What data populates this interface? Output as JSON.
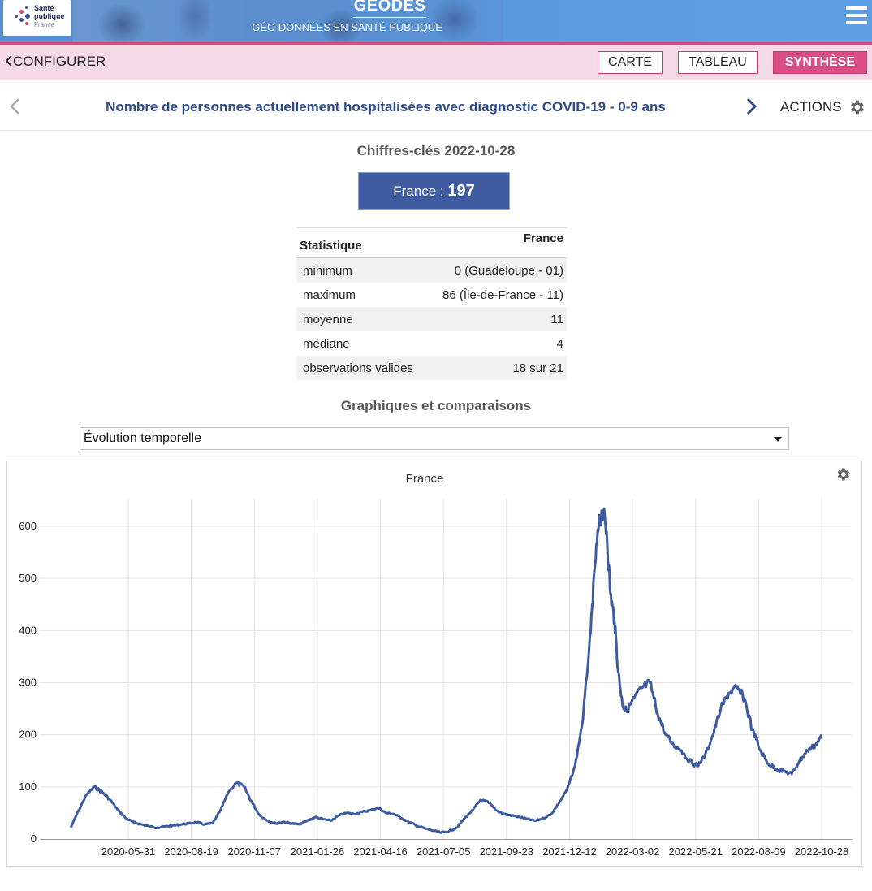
{
  "header": {
    "logo_line1": "Santé",
    "logo_line2": "publique",
    "logo_line3": "France",
    "brand": "GEODES",
    "brand_sub": "GÉO DONNÉES EN SANTÉ PUBLIQUE",
    "menu_icon": "hamburger-menu-icon",
    "border_color": "#d24c7d"
  },
  "nav": {
    "back_label": "CONFIGURER",
    "tabs": [
      {
        "label": "CARTE",
        "active": false
      },
      {
        "label": "TABLEAU",
        "active": false
      },
      {
        "label": "SYNTHÈSE",
        "active": true
      }
    ],
    "active_color": "#d94f84"
  },
  "indicator": {
    "title": "Nombre de personnes actuellement hospitalisées avec diagnostic COVID-19 - 0-9 ans",
    "actions_label": "ACTIONS"
  },
  "key_figures": {
    "title": "Chiffres-clés 2022-10-28",
    "label": "France : ",
    "value": "197",
    "box_color": "#3f5ba1"
  },
  "stats": {
    "headers": [
      "Statistique",
      "France"
    ],
    "rows": [
      {
        "label": "minimum",
        "value": "0 (Guadeloupe - 01)"
      },
      {
        "label": "maximum",
        "value": "86 (Île-de-France - 11)"
      },
      {
        "label": "moyenne",
        "value": "11"
      },
      {
        "label": "médiane",
        "value": "4"
      },
      {
        "label": "observations valides",
        "value": "18 sur 21"
      }
    ]
  },
  "graphs": {
    "title": "Graphiques et comparaisons",
    "selected": "Évolution temporelle"
  },
  "chart_data": {
    "type": "line",
    "title": "France",
    "xlabel": "",
    "ylabel": "",
    "ylim": [
      0,
      640
    ],
    "yticks": [
      0,
      100,
      200,
      300,
      400,
      500,
      600
    ],
    "xticks": [
      "2020-05-31",
      "2020-08-19",
      "2020-11-07",
      "2021-01-26",
      "2021-04-16",
      "2021-07-05",
      "2021-09-23",
      "2021-12-12",
      "2022-03-02",
      "2022-05-21",
      "2022-08-09",
      "2022-10-28"
    ],
    "grid": true,
    "line_color": "#3c5ba0",
    "series": [
      {
        "x": [
          "2020-03-19",
          "2020-03-29",
          "2020-04-08",
          "2020-04-18",
          "2020-04-28",
          "2020-05-08",
          "2020-05-18",
          "2020-05-28",
          "2020-06-07",
          "2020-06-17",
          "2020-06-27",
          "2020-07-07",
          "2020-07-17",
          "2020-07-27",
          "2020-08-06",
          "2020-08-16",
          "2020-08-26",
          "2020-09-05",
          "2020-09-15",
          "2020-09-25",
          "2020-10-05",
          "2020-10-15",
          "2020-10-25",
          "2020-11-04",
          "2020-11-14",
          "2020-11-24",
          "2020-12-04",
          "2020-12-14",
          "2020-12-24",
          "2021-01-03",
          "2021-01-13",
          "2021-01-23",
          "2021-02-02",
          "2021-02-12",
          "2021-02-22",
          "2021-03-04",
          "2021-03-14",
          "2021-03-24",
          "2021-04-03",
          "2021-04-13",
          "2021-04-23",
          "2021-05-03",
          "2021-05-13",
          "2021-05-23",
          "2021-06-02",
          "2021-06-12",
          "2021-06-22",
          "2021-07-02",
          "2021-07-12",
          "2021-07-22",
          "2021-08-01",
          "2021-08-11",
          "2021-08-21",
          "2021-08-31",
          "2021-09-10",
          "2021-09-20",
          "2021-09-30",
          "2021-10-10",
          "2021-10-20",
          "2021-10-30",
          "2021-11-09",
          "2021-11-19",
          "2021-11-29",
          "2021-12-09",
          "2021-12-19",
          "2021-12-29",
          "2022-01-08",
          "2022-01-13",
          "2022-01-18",
          "2022-01-23",
          "2022-01-28",
          "2022-02-02",
          "2022-02-07",
          "2022-02-12",
          "2022-02-17",
          "2022-02-22",
          "2022-03-04",
          "2022-03-14",
          "2022-03-24",
          "2022-04-03",
          "2022-04-13",
          "2022-04-23",
          "2022-05-03",
          "2022-05-13",
          "2022-05-23",
          "2022-06-02",
          "2022-06-12",
          "2022-06-22",
          "2022-07-02",
          "2022-07-12",
          "2022-07-22",
          "2022-08-01",
          "2022-08-11",
          "2022-08-21",
          "2022-08-31",
          "2022-09-10",
          "2022-09-20",
          "2022-09-30",
          "2022-10-10",
          "2022-10-20",
          "2022-10-28"
        ],
        "values": [
          22,
          55,
          85,
          100,
          90,
          75,
          55,
          40,
          32,
          28,
          24,
          22,
          24,
          26,
          28,
          30,
          32,
          28,
          30,
          55,
          90,
          108,
          100,
          70,
          45,
          35,
          30,
          33,
          30,
          28,
          35,
          42,
          38,
          35,
          45,
          50,
          48,
          52,
          55,
          60,
          50,
          48,
          40,
          32,
          25,
          20,
          16,
          12,
          15,
          22,
          40,
          55,
          75,
          70,
          55,
          48,
          45,
          42,
          38,
          35,
          40,
          48,
          70,
          95,
          140,
          230,
          400,
          520,
          600,
          630,
          590,
          470,
          420,
          320,
          260,
          245,
          270,
          290,
          300,
          240,
          200,
          180,
          170,
          150,
          140,
          160,
          200,
          250,
          280,
          290,
          270,
          210,
          170,
          145,
          135,
          130,
          125,
          150,
          170,
          180,
          197
        ]
      }
    ]
  }
}
